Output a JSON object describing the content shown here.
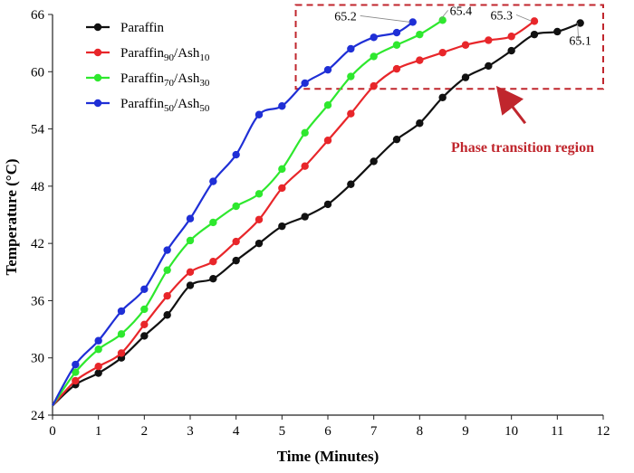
{
  "chart_data": {
    "type": "line",
    "title": "",
    "xlabel": "Time (Minutes)",
    "ylabel": "Temperature (°C)",
    "xlim": [
      0,
      12
    ],
    "ylim": [
      24,
      66
    ],
    "xticks": [
      0,
      1,
      2,
      3,
      4,
      5,
      6,
      7,
      8,
      9,
      10,
      11,
      12
    ],
    "yticks": [
      24,
      30,
      36,
      42,
      48,
      54,
      60,
      66
    ],
    "grid": false,
    "legend_position": "top-left",
    "series": [
      {
        "name": "Paraffin",
        "base": "Paraffin",
        "sub1": "",
        "mid": "",
        "sub2": "",
        "color": "#111111",
        "x": [
          0,
          0.5,
          1,
          1.5,
          2,
          2.5,
          3,
          3.5,
          4,
          4.5,
          5,
          5.5,
          6,
          6.5,
          7,
          7.5,
          8,
          8.5,
          9,
          9.5,
          10,
          10.5,
          11,
          11.5
        ],
        "y": [
          25.0,
          27.2,
          28.4,
          30.0,
          32.3,
          34.5,
          37.6,
          38.3,
          40.2,
          42.0,
          43.8,
          44.8,
          46.1,
          48.2,
          50.6,
          52.9,
          54.6,
          57.3,
          59.4,
          60.6,
          62.2,
          63.9,
          64.2,
          65.1
        ]
      },
      {
        "name": "Paraffin90/Ash10",
        "base": "Paraffin",
        "sub1": "90",
        "mid": "/Ash",
        "sub2": "10",
        "color": "#e8262a",
        "x": [
          0,
          0.5,
          1,
          1.5,
          2,
          2.5,
          3,
          3.5,
          4,
          4.5,
          5,
          5.5,
          6,
          6.5,
          7,
          7.5,
          8,
          8.5,
          9,
          9.5,
          10,
          10.5
        ],
        "y": [
          25.0,
          27.6,
          29.1,
          30.5,
          33.5,
          36.5,
          39.0,
          40.1,
          42.2,
          44.5,
          47.8,
          50.1,
          52.8,
          55.6,
          58.5,
          60.3,
          61.2,
          62.0,
          62.8,
          63.3,
          63.7,
          65.3
        ]
      },
      {
        "name": "Paraffin70/Ash30",
        "base": "Paraffin",
        "sub1": "70",
        "mid": "/Ash",
        "sub2": "30",
        "color": "#2ee82e",
        "x": [
          0,
          0.5,
          1,
          1.5,
          2,
          2.5,
          3,
          3.5,
          4,
          4.5,
          5,
          5.5,
          6,
          6.5,
          7,
          7.5,
          8,
          8.5
        ],
        "y": [
          25.0,
          28.5,
          30.9,
          32.5,
          35.1,
          39.2,
          42.3,
          44.2,
          45.9,
          47.2,
          49.8,
          53.6,
          56.5,
          59.5,
          61.6,
          62.8,
          63.9,
          65.4
        ]
      },
      {
        "name": "Paraffin50/Ash50",
        "base": "Paraffin",
        "sub1": "50",
        "mid": "/Ash",
        "sub2": "50",
        "color": "#1f2fd6",
        "x": [
          0,
          0.5,
          1,
          1.5,
          2,
          2.5,
          3,
          3.5,
          4,
          4.5,
          5,
          5.5,
          6,
          6.5,
          7,
          7.5,
          7.85
        ],
        "y": [
          25.0,
          29.3,
          31.8,
          34.9,
          37.2,
          41.3,
          44.6,
          48.5,
          51.3,
          55.5,
          56.4,
          58.8,
          60.2,
          62.4,
          63.6,
          64.1,
          65.2
        ]
      }
    ],
    "annotations": [
      {
        "text": "65.2",
        "series": 3,
        "x": 7.85,
        "y": 65.2
      },
      {
        "text": "65.4",
        "series": 2,
        "x": 8.5,
        "y": 65.4
      },
      {
        "text": "65.3",
        "series": 1,
        "x": 10.5,
        "y": 65.3
      },
      {
        "text": "65.1",
        "series": 0,
        "x": 11.5,
        "y": 65.1
      }
    ],
    "region_label": "Phase transition region",
    "region_x": [
      5.3,
      12.0
    ],
    "region_y": [
      58.2,
      67.0
    ]
  }
}
